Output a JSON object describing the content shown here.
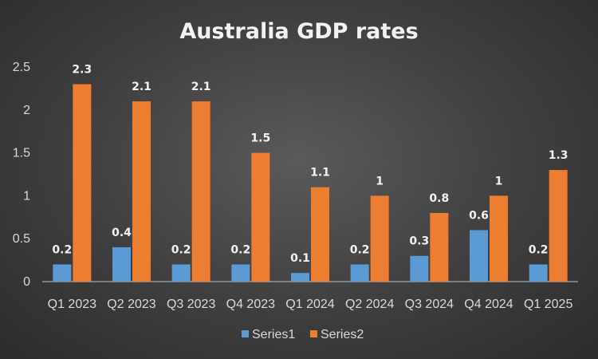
{
  "chart_data": {
    "type": "bar",
    "title": "Australia GDP rates",
    "xlabel": "",
    "ylabel": "",
    "categories": [
      "Q1 2023",
      "Q2 2023",
      "Q3 2023",
      "Q4 2023",
      "Q1 2024",
      "Q2 2024",
      "Q3 2024",
      "Q4 2024",
      "Q1 2025"
    ],
    "series": [
      {
        "name": "Series1",
        "values": [
          0.2,
          0.4,
          0.2,
          0.2,
          0.1,
          0.2,
          0.3,
          0.6,
          0.2
        ],
        "color": "#5b9bd5"
      },
      {
        "name": "Series2",
        "values": [
          2.3,
          2.1,
          2.1,
          1.5,
          1.1,
          1,
          0.8,
          1,
          1.3
        ],
        "color": "#ed7d31"
      }
    ],
    "ylim": [
      0,
      2.5
    ],
    "yticks": [
      "0",
      "0.5",
      "1",
      "1.5",
      "2",
      "2.5"
    ],
    "grid": false,
    "legend": "bottom"
  }
}
